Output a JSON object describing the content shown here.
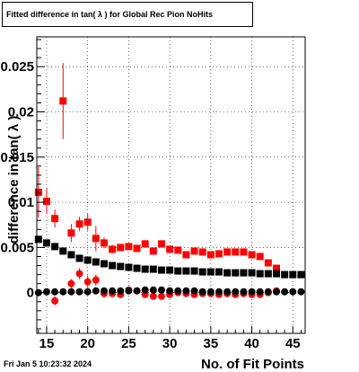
{
  "title": "Fitted difference in tan( λ ) for Global Rec Pion NoHits",
  "timestamp": "Fri Jan  5 10:23:32 2024",
  "chart_data": {
    "type": "scatter",
    "title": "Fitted difference in tan( λ ) for Global Rec Pion NoHits",
    "xlabel": "No. of Fit Points",
    "ylabel": "difference in tan( λ )",
    "xlim": [
      13.8,
      46.5
    ],
    "ylim": [
      -0.0045,
      0.0283
    ],
    "x_ticks": [
      15,
      20,
      25,
      30,
      35,
      40,
      45
    ],
    "x_tick_labels": [
      "15",
      "20",
      "25",
      "30",
      "35",
      "40",
      "45"
    ],
    "y_ticks": [
      0,
      0.005,
      0.01,
      0.015,
      0.02,
      0.025
    ],
    "y_tick_labels": [
      "0",
      "0.005",
      "0.01",
      "0.015",
      "0.02",
      "0.025"
    ],
    "grid": true,
    "series": [
      {
        "color": "#ff0000",
        "marker": "square",
        "x": [
          14,
          15,
          16,
          17,
          18,
          19,
          20,
          21,
          22,
          23,
          24,
          25,
          26,
          27,
          28,
          29,
          30,
          31,
          32,
          33,
          34,
          35,
          36,
          37,
          38,
          39,
          40,
          41,
          42,
          43
        ],
        "y": [
          0.0111,
          0.0101,
          0.0082,
          0.0212,
          0.0066,
          0.0076,
          0.0078,
          0.006,
          0.0055,
          0.0048,
          0.005,
          0.0051,
          0.0049,
          0.0054,
          0.0046,
          0.0054,
          0.0048,
          0.0047,
          0.0042,
          0.0046,
          0.0045,
          0.0042,
          0.0043,
          0.0045,
          0.0045,
          0.0045,
          0.0042,
          0.004,
          0.0033,
          0.0027
        ],
        "yerr": [
          0.0028,
          0.0014,
          0.001,
          0.0042,
          0.001,
          0.0008,
          0.0009,
          0.0014,
          0.0006,
          0.0005,
          0.0004,
          0.0003,
          0.0003,
          0.0004,
          0.0004,
          0.0004,
          0.0003,
          0.0003,
          0.0003,
          0.0003,
          0.0002,
          0.0002,
          0.0002,
          0.0002,
          0.0002,
          0.0002,
          0.0002,
          0.0002,
          0.0002,
          0.0002
        ]
      },
      {
        "color": "#ff0000",
        "marker": "circle",
        "x": [
          16,
          18,
          19,
          20,
          21,
          22,
          23,
          24,
          25,
          26,
          27,
          28,
          29,
          30,
          31,
          32,
          33,
          34,
          35,
          36,
          37,
          38,
          39,
          40,
          41,
          42,
          43
        ],
        "y": [
          -0.0009,
          0.001,
          0.0021,
          0.0012,
          0.0014,
          -0.0001,
          -0.0001,
          -0.0002,
          0.0003,
          0.0002,
          -0.0002,
          -0.0004,
          -0.0004,
          -0.0002,
          0.0,
          -0.0001,
          -0.0002,
          -0.0001,
          -0.0001,
          -0.0002,
          -0.0001,
          -0.0002,
          -0.0001,
          -0.0002,
          -0.0002,
          0.0,
          0.0002
        ],
        "yerr": [
          0.0005,
          0.0005,
          0.0006,
          0.0007,
          0.0006,
          0.0004,
          0.0003,
          0.0003,
          0.0003,
          0.0003,
          0.0003,
          0.0003,
          0.0004,
          0.0003,
          0.0002,
          0.0002,
          0.0002,
          0.0002,
          0.0002,
          0.0002,
          0.0002,
          0.0002,
          0.0002,
          0.0002,
          0.0002,
          0.0002,
          0.0002
        ]
      },
      {
        "color": "#000000",
        "marker": "square",
        "x": [
          14,
          15,
          16,
          17,
          18,
          19,
          20,
          21,
          22,
          23,
          24,
          25,
          26,
          27,
          28,
          29,
          30,
          31,
          32,
          33,
          34,
          35,
          36,
          37,
          38,
          39,
          40,
          41,
          42,
          43,
          44,
          45,
          46
        ],
        "y": [
          0.0059,
          0.0055,
          0.0051,
          0.0046,
          0.0042,
          0.0038,
          0.0036,
          0.0034,
          0.0032,
          0.003,
          0.0029,
          0.0028,
          0.0027,
          0.0026,
          0.0026,
          0.0025,
          0.0025,
          0.0024,
          0.0024,
          0.0024,
          0.0023,
          0.0023,
          0.0023,
          0.0022,
          0.0022,
          0.0022,
          0.0022,
          0.0021,
          0.0021,
          0.0021,
          0.002,
          0.002,
          0.002
        ]
      },
      {
        "color": "#000000",
        "marker": "circle",
        "x": [
          14,
          15,
          16,
          17,
          18,
          19,
          20,
          21,
          22,
          23,
          24,
          25,
          26,
          27,
          28,
          29,
          30,
          31,
          32,
          33,
          34,
          35,
          36,
          37,
          38,
          39,
          40,
          41,
          42,
          43,
          44,
          45,
          46
        ],
        "y": [
          0.0,
          0.0001,
          0.0001,
          0.0001,
          0.0001,
          0.0001,
          0.0001,
          0.0002,
          0.0002,
          0.0002,
          0.0002,
          0.0002,
          0.0002,
          0.0003,
          0.0003,
          0.0003,
          0.0002,
          0.0002,
          0.0002,
          0.0002,
          0.0001,
          0.0001,
          0.0001,
          0.0001,
          0.0001,
          0.0001,
          0.0001,
          0.0001,
          0.0001,
          0.0001,
          0.0001,
          0.0001,
          0.0001
        ]
      }
    ]
  }
}
